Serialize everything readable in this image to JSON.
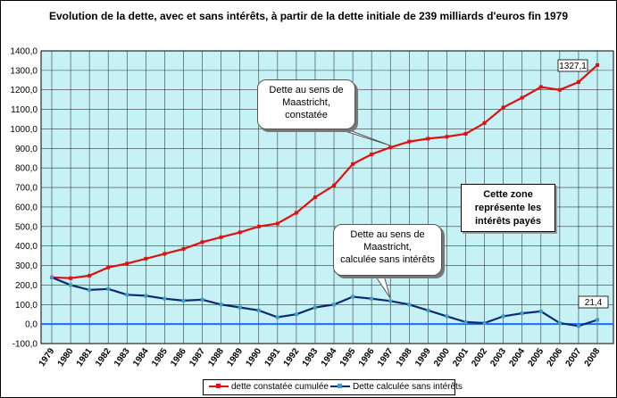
{
  "chart_data": {
    "type": "line",
    "title": "Evolution de la dette, avec et sans intérêts, à partir de la dette initiale de 239 milliards d'euros fin 1979",
    "xlabel": "",
    "ylabel": "",
    "ylim": [
      -100,
      1400
    ],
    "ytick_labels": [
      "-100,0",
      "0,0",
      "100,0",
      "200,0",
      "300,0",
      "400,0",
      "500,0",
      "600,0",
      "700,0",
      "800,0",
      "900,0",
      "1000,0",
      "1100,0",
      "1200,0",
      "1300,0",
      "1400,0"
    ],
    "x_labels": [
      "1979",
      "1980",
      "1981",
      "1982",
      "1983",
      "1984",
      "1985",
      "1986",
      "1987",
      "1988",
      "1989",
      "1990",
      "1991",
      "1992",
      "1993",
      "1994",
      "1995",
      "1996",
      "1997",
      "1998",
      "1999",
      "2000",
      "2001",
      "2002",
      "2003",
      "2004",
      "2005",
      "2006",
      "2007",
      "2008"
    ],
    "grid": true,
    "legend_position": "bottom",
    "colors": {
      "plot_bg": "#c6f1f5",
      "grid": "#3a3a3a",
      "series1": "#e01010",
      "series2": "#0d2a6e",
      "zero_line": "#1a6bff"
    },
    "series": [
      {
        "name": "dette constatée cumulée",
        "values": [
          239,
          235,
          248,
          290,
          310,
          335,
          360,
          385,
          420,
          445,
          470,
          500,
          515,
          570,
          650,
          710,
          820,
          870,
          905,
          935,
          950,
          960,
          975,
          1030,
          1110,
          1160,
          1215,
          1200,
          1240,
          1327.1
        ]
      },
      {
        "name": "Dette calculée sans intérêts",
        "values": [
          239,
          200,
          175,
          180,
          150,
          145,
          130,
          120,
          125,
          100,
          85,
          70,
          35,
          50,
          85,
          100,
          140,
          130,
          118,
          100,
          70,
          40,
          10,
          5,
          40,
          55,
          65,
          5,
          -10,
          21.4
        ]
      }
    ],
    "annotations": {
      "last_value_1": "1327,1",
      "last_value_2": "21,4",
      "callout_1": [
        "Dette au sens de",
        "Maastricht,",
        "constatée"
      ],
      "callout_2": [
        "Dette au sens de",
        "Maastricht,",
        "calculée sans intérêts"
      ],
      "note": [
        "Cette zone",
        "représente les",
        "intérêts payés"
      ]
    }
  }
}
